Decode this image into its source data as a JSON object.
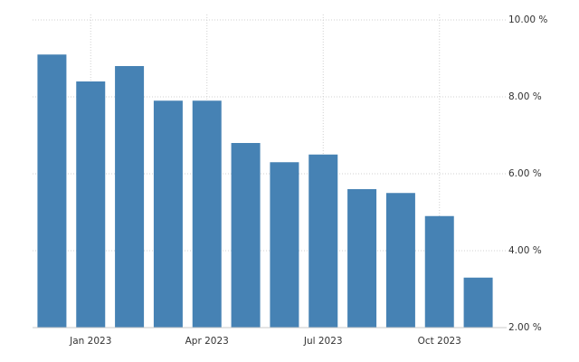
{
  "chart_data": {
    "type": "bar",
    "categories": [
      null,
      "Jan 2023",
      null,
      null,
      "Apr 2023",
      null,
      null,
      "Jul 2023",
      null,
      null,
      "Oct 2023",
      null
    ],
    "values": [
      9.1,
      8.4,
      8.8,
      7.9,
      7.9,
      6.8,
      6.3,
      6.5,
      5.6,
      5.5,
      4.9,
      3.3
    ],
    "color": "#4682b4",
    "ylim": [
      2,
      10
    ],
    "yticks": [
      {
        "value": 2,
        "label": "2.00 %"
      },
      {
        "value": 4,
        "label": "4.00 %"
      },
      {
        "value": 6,
        "label": "6.00 %"
      },
      {
        "value": 8,
        "label": "8.00 %"
      },
      {
        "value": 10,
        "label": "10.00 %"
      }
    ],
    "grid": true
  }
}
